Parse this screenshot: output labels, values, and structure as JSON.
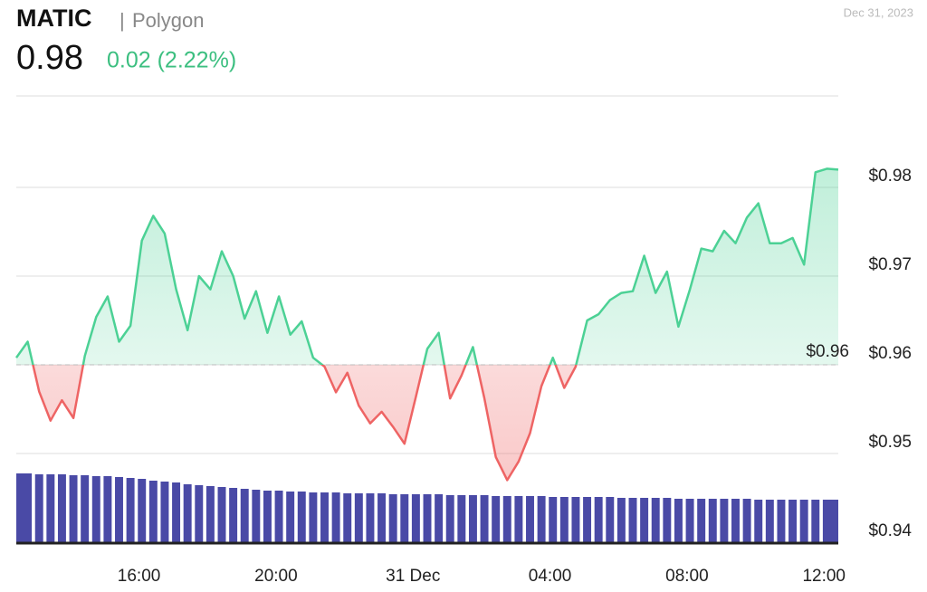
{
  "header": {
    "symbol": "MATIC",
    "name": "Polygon",
    "price": "0.98",
    "change": "0.02 (2.22%)",
    "date": "Dec 31, 2023"
  },
  "chart_data": {
    "type": "line",
    "x": [
      "2023-12-30T12:25",
      "2023-12-30T12:45",
      "2023-12-30T13:05",
      "2023-12-30T13:25",
      "2023-12-30T13:45",
      "2023-12-30T14:05",
      "2023-12-30T14:25",
      "2023-12-30T14:45",
      "2023-12-30T15:05",
      "2023-12-30T15:25",
      "2023-12-30T15:45",
      "2023-12-30T16:05",
      "2023-12-30T16:25",
      "2023-12-30T16:45",
      "2023-12-30T17:05",
      "2023-12-30T17:25",
      "2023-12-30T17:45",
      "2023-12-30T18:05",
      "2023-12-30T18:25",
      "2023-12-30T18:45",
      "2023-12-30T19:05",
      "2023-12-30T19:25",
      "2023-12-30T19:45",
      "2023-12-30T20:05",
      "2023-12-30T20:25",
      "2023-12-30T20:45",
      "2023-12-30T21:05",
      "2023-12-30T21:25",
      "2023-12-30T21:45",
      "2023-12-30T22:05",
      "2023-12-30T22:25",
      "2023-12-30T22:45",
      "2023-12-30T23:05",
      "2023-12-30T23:25",
      "2023-12-30T23:45",
      "2023-12-31T00:05",
      "2023-12-31T00:25",
      "2023-12-31T00:45",
      "2023-12-31T01:05",
      "2023-12-31T01:25",
      "2023-12-31T01:45",
      "2023-12-31T02:05",
      "2023-12-31T02:25",
      "2023-12-31T02:45",
      "2023-12-31T03:05",
      "2023-12-31T03:25",
      "2023-12-31T03:45",
      "2023-12-31T04:05",
      "2023-12-31T04:25",
      "2023-12-31T04:45",
      "2023-12-31T05:05",
      "2023-12-31T05:25",
      "2023-12-31T05:45",
      "2023-12-31T06:05",
      "2023-12-31T06:25",
      "2023-12-31T06:45",
      "2023-12-31T07:05",
      "2023-12-31T07:25",
      "2023-12-31T07:45",
      "2023-12-31T08:05",
      "2023-12-31T08:25",
      "2023-12-31T08:45",
      "2023-12-31T09:05",
      "2023-12-31T09:25",
      "2023-12-31T09:45",
      "2023-12-31T10:05",
      "2023-12-31T10:25",
      "2023-12-31T10:45",
      "2023-12-31T11:05",
      "2023-12-31T11:25",
      "2023-12-31T11:45",
      "2023-12-31T12:05",
      "2023-12-31T12:25"
    ],
    "values": [
      0.9608,
      0.9626,
      0.957,
      0.9537,
      0.956,
      0.954,
      0.961,
      0.9654,
      0.9677,
      0.9626,
      0.9644,
      0.974,
      0.9768,
      0.9748,
      0.9685,
      0.9639,
      0.97,
      0.9685,
      0.9728,
      0.97,
      0.9652,
      0.9683,
      0.9636,
      0.9677,
      0.9634,
      0.9649,
      0.9608,
      0.9598,
      0.9569,
      0.9591,
      0.9554,
      0.9534,
      0.9547,
      0.953,
      0.9511,
      0.9564,
      0.9618,
      0.9636,
      0.9562,
      0.9588,
      0.962,
      0.9562,
      0.9496,
      0.947,
      0.9491,
      0.9523,
      0.9576,
      0.9608,
      0.9574,
      0.9598,
      0.965,
      0.9657,
      0.9673,
      0.9681,
      0.9683,
      0.9723,
      0.9681,
      0.9705,
      0.9643,
      0.9685,
      0.9731,
      0.9728,
      0.9751,
      0.9737,
      0.9766,
      0.9782,
      0.9737,
      0.9737,
      0.9743,
      0.9713,
      0.9817,
      0.9821,
      0.982
    ],
    "volume": [
      76,
      76,
      75,
      75,
      75,
      74,
      74,
      73,
      73,
      72,
      71,
      70,
      68,
      67,
      66,
      64,
      63,
      62,
      61,
      60,
      59,
      58,
      57,
      57,
      56,
      56,
      55,
      55,
      55,
      54,
      54,
      54,
      54,
      53,
      53,
      53,
      53,
      53,
      52,
      52,
      52,
      52,
      51,
      51,
      51,
      51,
      51,
      50,
      50,
      50,
      50,
      50,
      50,
      49,
      49,
      49,
      49,
      49,
      48,
      48,
      48,
      48,
      48,
      48,
      48,
      47,
      47,
      47,
      47,
      47,
      47,
      47,
      47
    ],
    "color_up": "#4cd195",
    "color_down": "#ee6464",
    "volume_color": "#4a4aa6",
    "baseline": {
      "value": 0.96,
      "label": "$0.96"
    },
    "xlim": [
      "2023-12-30T12:25",
      "2023-12-31T12:25"
    ],
    "xticks": [
      {
        "value": "2023-12-30T16:00",
        "label": "16:00"
      },
      {
        "value": "2023-12-30T20:00",
        "label": "20:00"
      },
      {
        "value": "2023-12-31T00:00",
        "label": "31 Dec"
      },
      {
        "value": "2023-12-31T04:00",
        "label": "04:00"
      },
      {
        "value": "2023-12-31T08:00",
        "label": "08:00"
      },
      {
        "value": "2023-12-31T12:00",
        "label": "12:00"
      }
    ],
    "ylim": [
      0.94,
      0.99
    ],
    "yticks": [
      {
        "value": 0.94,
        "label": "$0.94"
      },
      {
        "value": 0.95,
        "label": "$0.95"
      },
      {
        "value": 0.96,
        "label": "$0.96"
      },
      {
        "value": 0.97,
        "label": "$0.97"
      },
      {
        "value": 0.98,
        "label": "$0.98"
      }
    ],
    "grid": true
  }
}
